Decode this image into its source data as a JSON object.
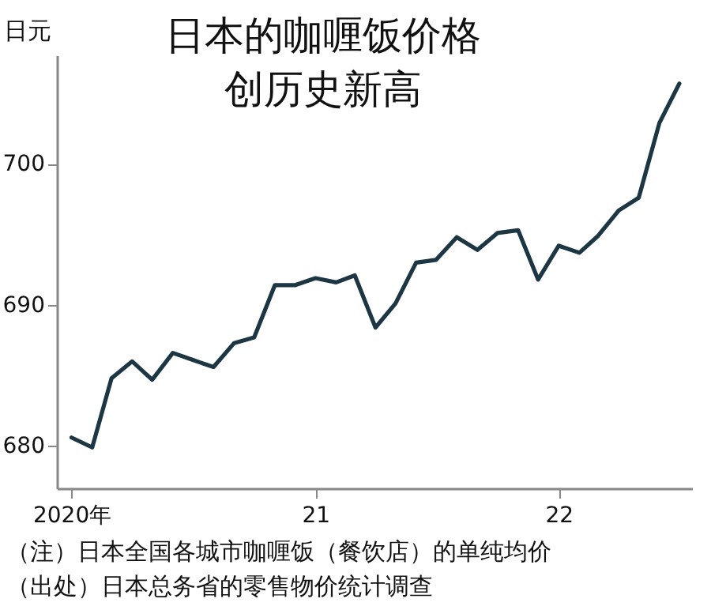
{
  "chart_data": {
    "type": "line",
    "title": "日本的咖喱饭价格创历史新高",
    "ylabel": "日元",
    "annotations": [
      "（注）日本全国各城市咖喱饭（餐饮店）的单纯均价",
      "（出处）日本总务省的零售物价统计调查"
    ],
    "x": [
      "2020-01",
      "2020-02",
      "2020-03",
      "2020-04",
      "2020-05",
      "2020-06",
      "2020-07",
      "2020-08",
      "2020-09",
      "2020-10",
      "2020-11",
      "2020-12",
      "2021-01",
      "2021-02",
      "2021-03",
      "2021-04",
      "2021-05",
      "2021-06",
      "2021-07",
      "2021-08",
      "2021-09",
      "2021-10",
      "2021-11",
      "2021-12",
      "2022-01",
      "2022-02",
      "2022-03",
      "2022-04",
      "2022-05",
      "2022-06",
      "2022-07"
    ],
    "series": [
      {
        "color": "#1c3644",
        "values": [
          680.6,
          679.9,
          684.8,
          686.0,
          684.7,
          686.6,
          686.1,
          685.6,
          687.3,
          687.7,
          691.4,
          691.4,
          691.9,
          691.6,
          692.1,
          688.4,
          690.1,
          693.0,
          693.2,
          694.8,
          693.9,
          695.1,
          695.3,
          691.8,
          694.2,
          693.7,
          694.9,
          696.7,
          697.6,
          702.9,
          705.7
        ]
      }
    ],
    "xlim": [
      "2019-12-10",
      "2022-07-20"
    ],
    "xticks": [
      {
        "value": "2020",
        "label": "2020年"
      },
      {
        "value": "2021",
        "label": "21"
      },
      {
        "value": "2022",
        "label": "22"
      }
    ],
    "ylim": [
      677,
      707.7
    ],
    "yticks": [
      680,
      690,
      700
    ],
    "grid": false,
    "marker": "none",
    "line_style": "solid"
  }
}
